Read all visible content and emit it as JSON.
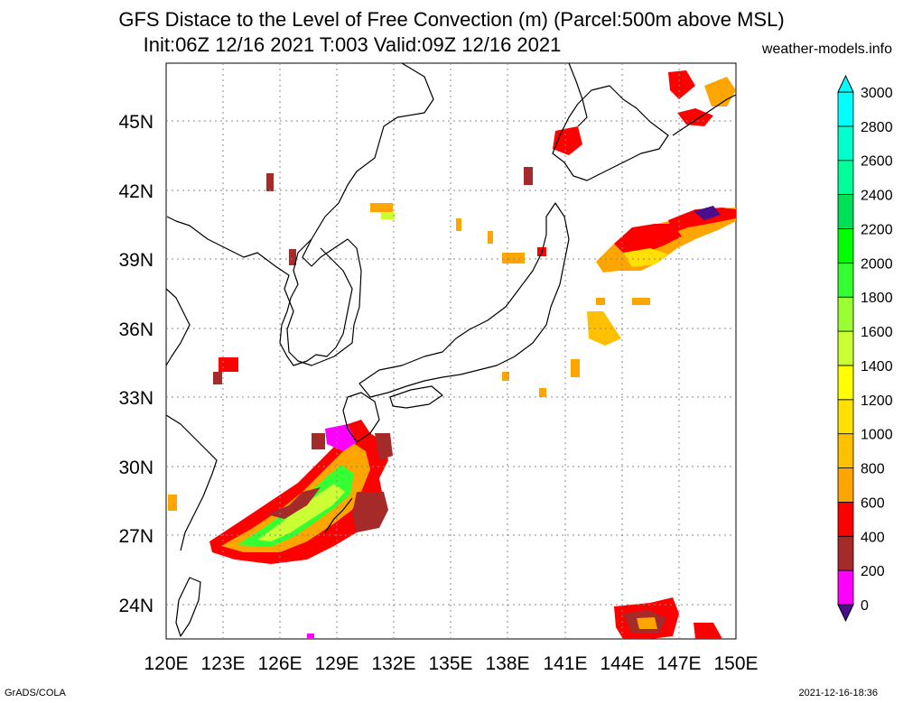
{
  "header": {
    "title_line1": "GFS Distace to the Level of Free Convection (m) (Parcel:500m above MSL)",
    "title_line2": "Init:06Z 12/16 2021 T:003 Valid:09Z 12/16 2021",
    "credit": "weather-models.info"
  },
  "footer": {
    "software": "GrADS/COLA",
    "generated": "2021-12-16-18:36"
  },
  "map": {
    "lon_range": [
      120,
      150
    ],
    "lat_range": [
      22.5,
      47.5
    ],
    "lon_ticks": [
      "120E",
      "123E",
      "126E",
      "129E",
      "132E",
      "135E",
      "138E",
      "141E",
      "144E",
      "147E",
      "150E"
    ],
    "lat_ticks": [
      "24N",
      "27N",
      "30N",
      "33N",
      "36N",
      "39N",
      "42N",
      "45N"
    ],
    "grid": true,
    "coastline_color": "#000000"
  },
  "colorbar": {
    "labels": [
      "0",
      "200",
      "400",
      "600",
      "800",
      "1000",
      "1200",
      "1400",
      "1600",
      "1800",
      "2000",
      "2200",
      "2400",
      "2600",
      "2800",
      "3000"
    ],
    "colors": [
      "#4b0f8c",
      "#ff00ff",
      "#a52a2a",
      "#ff0000",
      "#ffa500",
      "#ffc000",
      "#ffe000",
      "#ffff00",
      "#ccff33",
      "#99ff33",
      "#33ff33",
      "#00ff00",
      "#00e056",
      "#00ff99",
      "#00ffcc",
      "#00ffff"
    ]
  },
  "precip_regions": [
    {
      "name": "east-china-sea-band",
      "color": "#ff0000"
    },
    {
      "name": "ryukyu-band",
      "color": "#ffa500"
    },
    {
      "name": "green-core",
      "color": "#33ff33"
    },
    {
      "name": "pacific-east-of-tohoku",
      "color": "#ffa500"
    },
    {
      "name": "south-pacific",
      "color": "#ff0000"
    }
  ]
}
